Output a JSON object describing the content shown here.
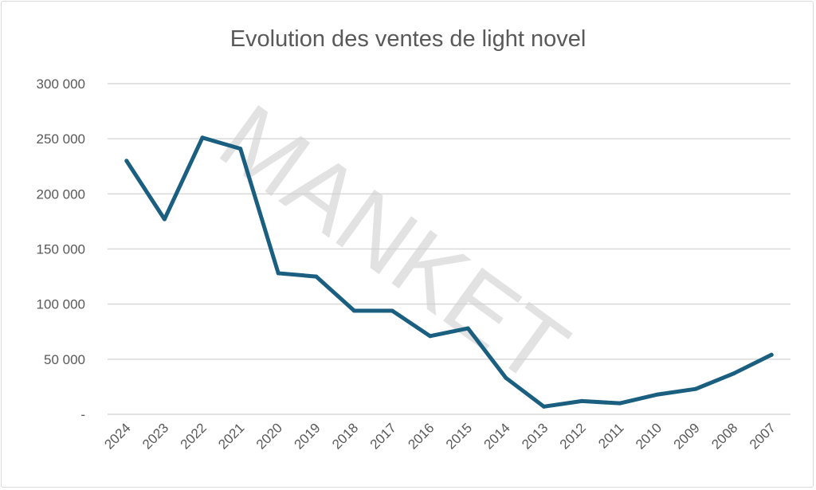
{
  "chart_data": {
    "type": "line",
    "title": "Evolution des ventes de light novel",
    "xlabel": "",
    "ylabel": "",
    "categories": [
      "2024",
      "2023",
      "2022",
      "2021",
      "2020",
      "2019",
      "2018",
      "2017",
      "2016",
      "2015",
      "2014",
      "2013",
      "2012",
      "2011",
      "2010",
      "2009",
      "2008",
      "2007"
    ],
    "values": [
      230000,
      177000,
      251000,
      241000,
      128000,
      125000,
      94000,
      94000,
      71000,
      78000,
      33000,
      7000,
      12000,
      10000,
      18000,
      23000,
      37000,
      54000
    ],
    "ylim": [
      0,
      300000
    ],
    "yticks": [
      0,
      50000,
      100000,
      150000,
      200000,
      250000,
      300000
    ],
    "ytick_labels": [
      "-",
      "50 000",
      "100 000",
      "150 000",
      "200 000",
      "250 000",
      "300 000"
    ],
    "grid": true,
    "legend": "none",
    "line_color": "#1a5e80",
    "watermark": "MANKET"
  }
}
